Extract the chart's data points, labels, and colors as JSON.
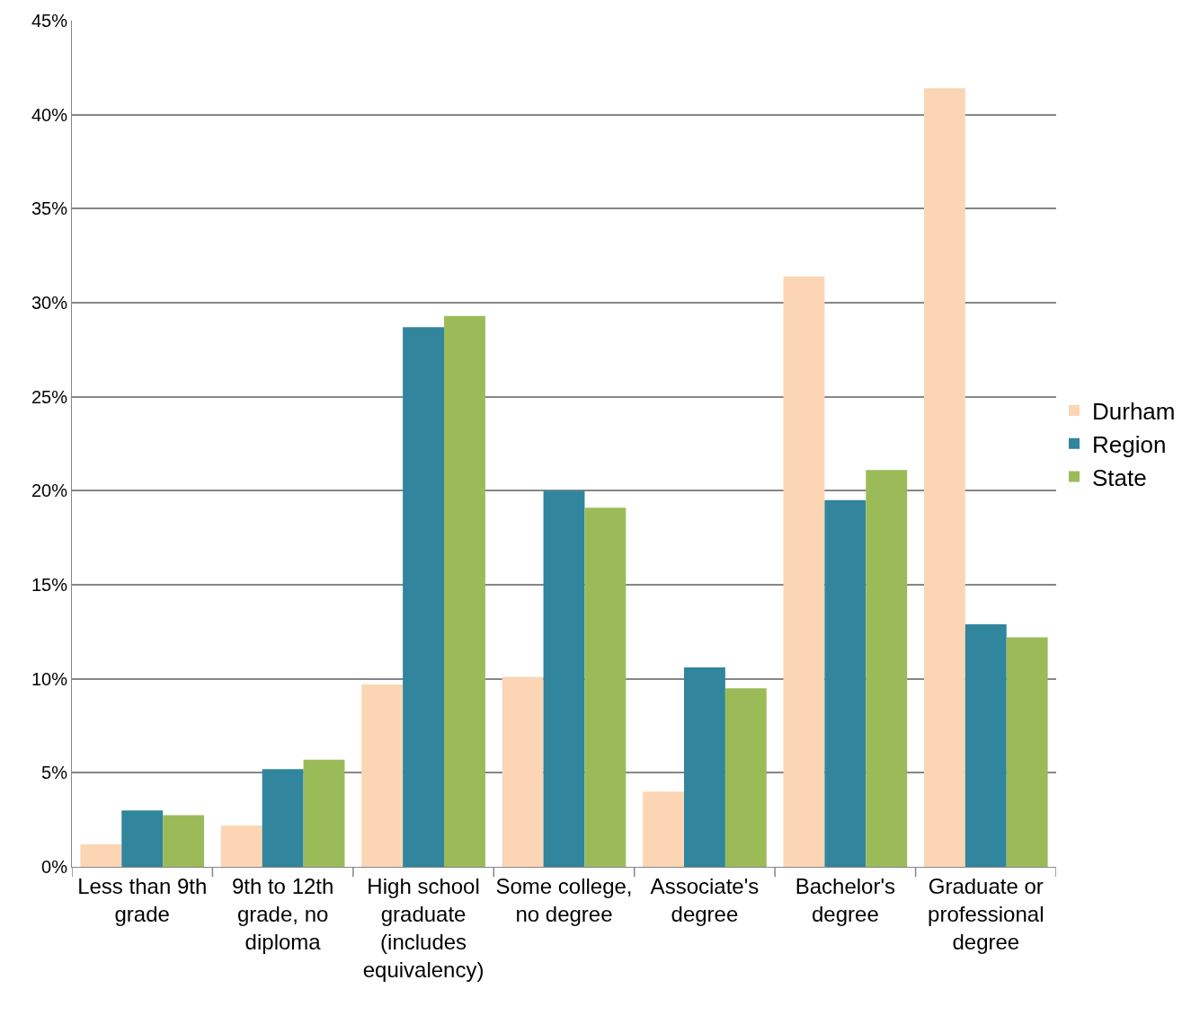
{
  "chart_data": {
    "type": "bar",
    "categories": [
      "Less than 9th grade",
      "9th to 12th grade, no diploma",
      "High school graduate (includes equivalency)",
      "Some college, no degree",
      "Associate's degree",
      "Bachelor's degree",
      "Graduate or professional degree"
    ],
    "series": [
      {
        "name": "Durham",
        "color": "#fcd5b4",
        "values": [
          1.2,
          2.2,
          9.7,
          10.1,
          4.0,
          31.4,
          41.4
        ]
      },
      {
        "name": "Region",
        "color": "#31859c",
        "values": [
          3.0,
          5.2,
          28.7,
          20.0,
          10.6,
          19.5,
          12.9
        ]
      },
      {
        "name": "State",
        "color": "#9bbb59",
        "values": [
          2.75,
          5.7,
          29.3,
          19.1,
          9.5,
          21.1,
          12.2
        ]
      }
    ],
    "ylim": [
      0,
      45
    ],
    "yticks": [
      {
        "value": 0,
        "label": "0%"
      },
      {
        "value": 5,
        "label": "5%"
      },
      {
        "value": 10,
        "label": "10%"
      },
      {
        "value": 15,
        "label": "15%"
      },
      {
        "value": 20,
        "label": "20%"
      },
      {
        "value": 25,
        "label": "25%"
      },
      {
        "value": 30,
        "label": "30%"
      },
      {
        "value": 35,
        "label": "35%"
      },
      {
        "value": 40,
        "label": "40%"
      },
      {
        "value": 45,
        "label": "45%"
      }
    ],
    "grid": "y",
    "legend": "right"
  }
}
